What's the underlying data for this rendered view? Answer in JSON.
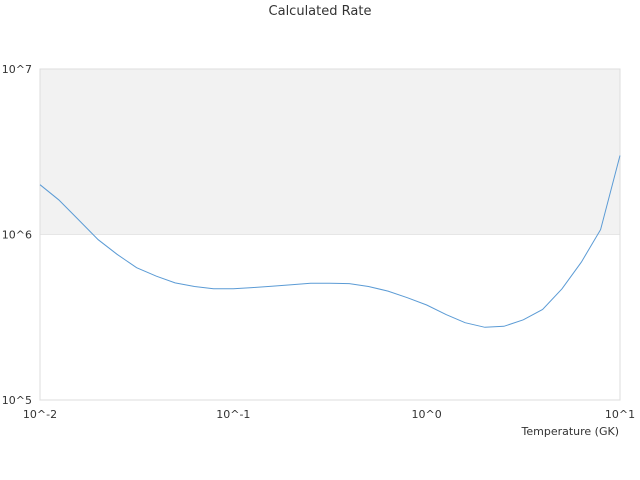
{
  "chart_data": {
    "type": "line",
    "title": "Calculated Rate",
    "xlabel": "Temperature (GK)",
    "ylabel": "",
    "x_scale": "log",
    "y_scale": "log",
    "xlim": [
      0.01,
      10
    ],
    "ylim": [
      100000,
      10000000
    ],
    "x_ticks": [
      0.01,
      0.1,
      1,
      10
    ],
    "x_tick_labels": [
      "10^-2",
      "10^-1",
      "10^0",
      "10^1"
    ],
    "y_ticks": [
      100000,
      1000000,
      10000000
    ],
    "y_tick_labels": [
      "10^5",
      "10^6",
      "10^7"
    ],
    "grid": false,
    "bands": [
      {
        "from": 1000000,
        "to": 10000000,
        "color": "#f2f2f2"
      }
    ],
    "series": [
      {
        "color": "#5b9bd5",
        "x": [
          0.01,
          0.0125,
          0.0158,
          0.02,
          0.025,
          0.0316,
          0.04,
          0.05,
          0.063,
          0.079,
          0.1,
          0.125,
          0.158,
          0.2,
          0.251,
          0.316,
          0.398,
          0.5,
          0.631,
          0.794,
          1.0,
          1.26,
          1.58,
          2.0,
          2.51,
          3.16,
          3.98,
          5.01,
          6.31,
          7.94,
          10.0
        ],
        "values": [
          2000000,
          1620000,
          1230000,
          930000,
          760000,
          630000,
          560000,
          510000,
          485000,
          470000,
          470000,
          478000,
          487000,
          497000,
          507000,
          508000,
          505000,
          485000,
          455000,
          415000,
          375000,
          328000,
          293000,
          275000,
          279000,
          305000,
          352000,
          470000,
          680000,
          1070000,
          3000000
        ]
      }
    ]
  }
}
